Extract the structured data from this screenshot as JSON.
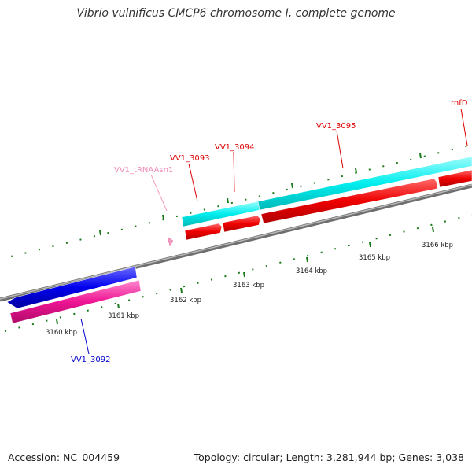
{
  "title": "Vibrio vulnificus CMCP6 chromosome I, complete genome",
  "footer": {
    "accession": "Accession: NC_004459",
    "summary": "Topology: circular; Length: 3,281,944 bp; Genes: 3,038"
  },
  "colors": {
    "backbone": "#808080",
    "gene_strand_blue": "#0000ee",
    "gene_strand_cyan": "#00eeee",
    "cds_red": "#ee0000",
    "cds_magenta": "#ee1493",
    "trna_pink": "#f39ac0",
    "tick_green": "#1a7a1a",
    "label_red": "#dd0000",
    "label_blue": "#0000cc",
    "label_pink": "#f08ab8"
  },
  "scale_labels": [
    "3160 kbp",
    "3161 kbp",
    "3162 kbp",
    "3163 kbp",
    "3164 kbp",
    "3165 kbp",
    "3166 kbp"
  ],
  "feature_labels": {
    "vv1_3092": "VV1_3092",
    "vv1_3093": "VV1_3093",
    "vv1_3094": "VV1_3094",
    "vv1_3095": "VV1_3095",
    "rnfd": "rnfD",
    "trna": "VV1_tRNAAsn1"
  }
}
